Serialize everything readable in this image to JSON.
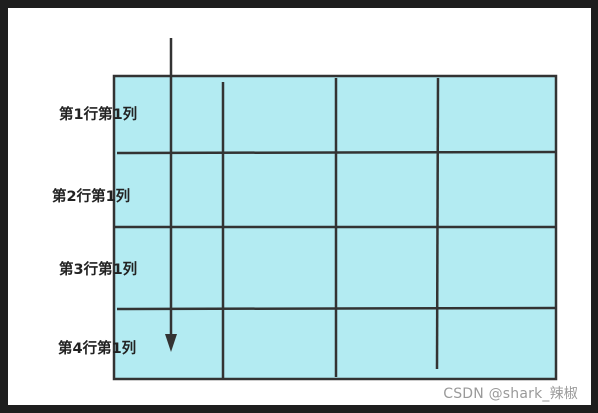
{
  "diagram": {
    "row_labels": [
      "第1行第1列",
      "第2行第1列",
      "第3行第1列",
      "第4行第1列"
    ],
    "cell_fill": "#b3ebf2",
    "stroke_color": "#333333"
  },
  "watermark": "CSDN @shark_辣椒"
}
